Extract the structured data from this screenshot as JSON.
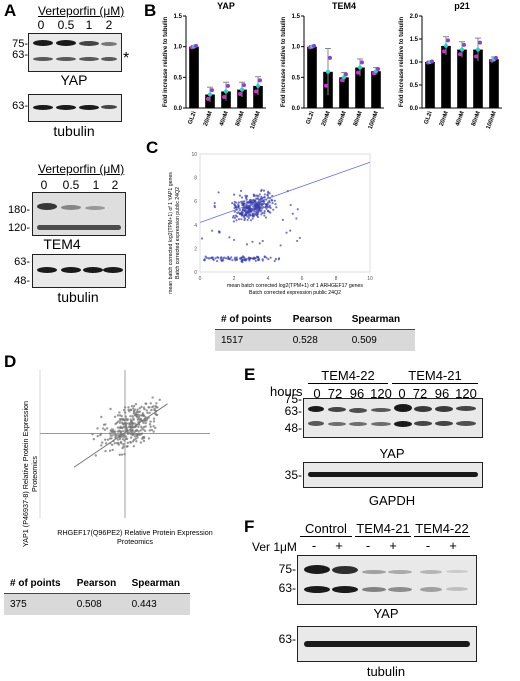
{
  "panels": {
    "A": "A",
    "B": "B",
    "C": "C",
    "D": "D",
    "E": "E",
    "F": "F"
  },
  "panelA": {
    "treatment1": "Verteporfin (μM)",
    "lanes1": [
      "0",
      "0.5",
      "1",
      "2"
    ],
    "yap_mw": [
      "75-",
      "63-"
    ],
    "asterisk": "*",
    "yap_label": "YAP",
    "tubulin_mw": "63-",
    "tubulin_label": "tubulin",
    "treatment2": "Verteporfin (μM)",
    "lanes2": [
      "0",
      "0.5",
      "1",
      "2"
    ],
    "tem4_mw": [
      "180-",
      "120-"
    ],
    "tem4_label": "TEM4",
    "tubulin2_mw": [
      "63-",
      "48-"
    ],
    "tubulin2_label": "tubulin"
  },
  "chart_data": [
    {
      "type": "bar",
      "title": "YAP",
      "ylabel": "Fold increase relative to tubulin",
      "categories": [
        "GL2i",
        "20nM",
        "40nM",
        "80nM",
        "100nM"
      ],
      "values": [
        1.0,
        0.22,
        0.27,
        0.3,
        0.36
      ],
      "errors": [
        0.02,
        0.12,
        0.15,
        0.12,
        0.15
      ],
      "ylim": [
        0,
        1.5
      ],
      "yticks": [
        "0.0",
        "0.5",
        "1.0",
        "1.5"
      ]
    },
    {
      "type": "bar",
      "title": "TEM4",
      "ylabel": "Fold increase relative to tubulin",
      "categories": [
        "GL2i",
        "20nM",
        "40nM",
        "80nM",
        "100nM"
      ],
      "values": [
        1.0,
        0.59,
        0.5,
        0.66,
        0.6
      ],
      "errors": [
        0.02,
        0.38,
        0.08,
        0.14,
        0.06
      ],
      "ylim": [
        0,
        1.5
      ],
      "yticks": [
        "0.0",
        "0.5",
        "1.0",
        "1.5"
      ]
    },
    {
      "type": "bar",
      "title": "p21",
      "ylabel": "Fold increase relative to tubulin",
      "categories": [
        "GL2i",
        "20nM",
        "40nM",
        "80nM",
        "100nM"
      ],
      "values": [
        1.0,
        1.35,
        1.27,
        1.27,
        1.06
      ],
      "errors": [
        0.02,
        0.2,
        0.17,
        0.25,
        0.05
      ],
      "ylim": [
        0,
        2.0
      ],
      "yticks": [
        "0.0",
        "0.5",
        "1.0",
        "1.5",
        "2.0"
      ]
    },
    {
      "type": "scatter",
      "xlabel": "mean batch corrected log2(TPM+1) of 1 ARHGEF17 genes",
      "xlabel2": "Batch corrected expression public 24Q2",
      "ylabel": "mean batch corrected log2(TPM+1) of 1 YAP1 genes",
      "ylabel2": "Batch corrected expression public 24Q2",
      "xlim": [
        0,
        10
      ],
      "ylim": [
        0,
        10
      ],
      "xticks": [
        "0",
        "2",
        "4",
        "6",
        "8",
        "10"
      ],
      "yticks": [
        "0",
        "2",
        "4",
        "6",
        "8",
        "10"
      ],
      "n_points": 1517,
      "pearson": 0.528,
      "spearman": 0.509
    },
    {
      "type": "scatter",
      "xlabel": "RHGEF17(Q96PE2) Relative Protein Expression",
      "xlabel2": "Proteomics",
      "ylabel": "YAP1 (P46937-8) Relative Protein Expression",
      "ylabel2": "Proteomics",
      "xlim": [
        -2,
        2
      ],
      "ylim": [
        -4,
        3
      ],
      "n_points": 375,
      "pearson": 0.508,
      "spearman": 0.443
    }
  ],
  "statsC": {
    "headers": [
      "# of points",
      "Pearson",
      "Spearman"
    ],
    "values": [
      "1517",
      "0.528",
      "0.509"
    ]
  },
  "statsD": {
    "headers": [
      "# of points",
      "Pearson",
      "Spearman"
    ],
    "values": [
      "375",
      "0.508",
      "0.443"
    ]
  },
  "panelE": {
    "group1": "TEM4-22",
    "group2": "TEM4-21",
    "hours_label": "hours",
    "lanes": [
      "0",
      "72",
      "96",
      "120",
      "0",
      "72",
      "96",
      "120"
    ],
    "yap_mw": [
      "75-",
      "63-",
      "48-"
    ],
    "yap_label": "YAP",
    "gapdh_mw": "35-",
    "gapdh_label": "GAPDH"
  },
  "panelF": {
    "groups": [
      "Control",
      "TEM4-21",
      "TEM4-22"
    ],
    "ver_label": "Ver 1μM",
    "signs": [
      "-",
      "+",
      "-",
      "+",
      "-",
      "+"
    ],
    "yap_mw": [
      "75-",
      "63-"
    ],
    "yap_label": "YAP",
    "tubulin_mw": "63-",
    "tubulin_label": "tubulin"
  }
}
